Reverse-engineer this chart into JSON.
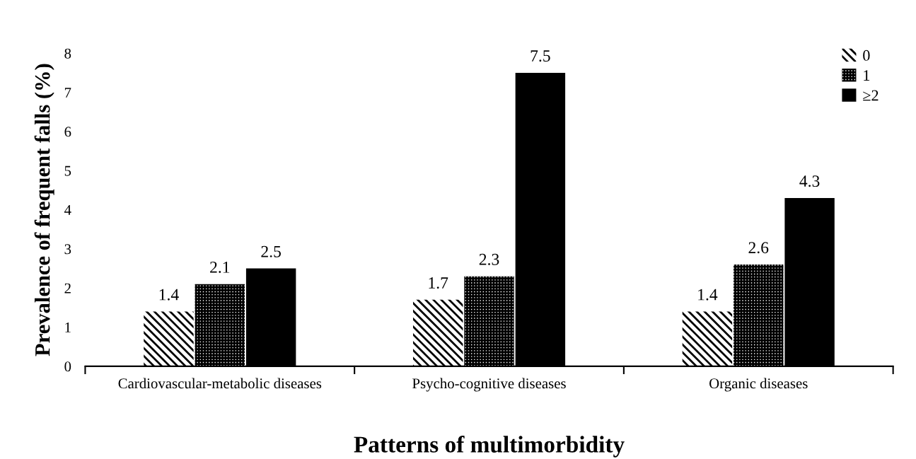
{
  "chart_data": {
    "type": "bar",
    "ylabel": "Prevalence of frequent falls (%)",
    "xlabel": "Patterns of multimorbidity",
    "categories": [
      "Cardiovascular-metabolic diseases",
      "Psycho-cognitive diseases",
      "Organic diseases"
    ],
    "series": [
      {
        "name": "0",
        "color": "#000000",
        "values": [
          1.4,
          1.7,
          1.4
        ]
      },
      {
        "name": "1",
        "color": "#000000",
        "values": [
          2.1,
          2.3,
          2.6
        ]
      },
      {
        "name": "≥2",
        "color": "#000000",
        "values": [
          2.5,
          7.5,
          4.3
        ]
      }
    ],
    "ylim": [
      0,
      8
    ],
    "yticks": [
      0,
      1,
      2,
      3,
      4,
      5,
      6,
      7,
      8
    ],
    "data_labels": true,
    "grid": false,
    "legend": "top right"
  }
}
